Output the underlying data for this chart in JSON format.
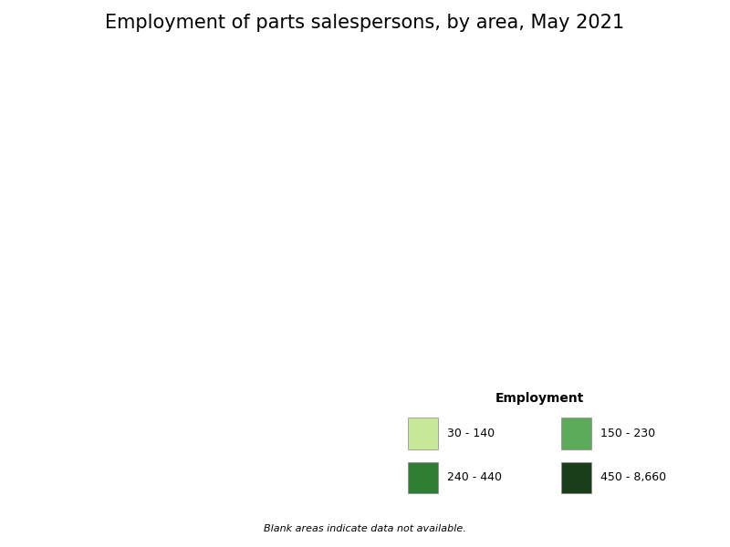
{
  "title": "Employment of parts salespersons, by area, May 2021",
  "title_fontsize": 15,
  "legend_title": "Employment",
  "legend_title_fontsize": 10,
  "legend_fontsize": 9,
  "legend_labels": [
    "30 - 140",
    "150 - 230",
    "240 - 440",
    "450 - 8,660"
  ],
  "legend_colors": [
    "#c8e89a",
    "#5aaa5a",
    "#2e7d32",
    "#1a3d1a"
  ],
  "blank_color": "#ffffff",
  "background_color": "#ffffff",
  "border_color": "#000000",
  "border_width": 0.3,
  "fig_width": 8.0,
  "fig_height": 6.0,
  "dpi": 100
}
